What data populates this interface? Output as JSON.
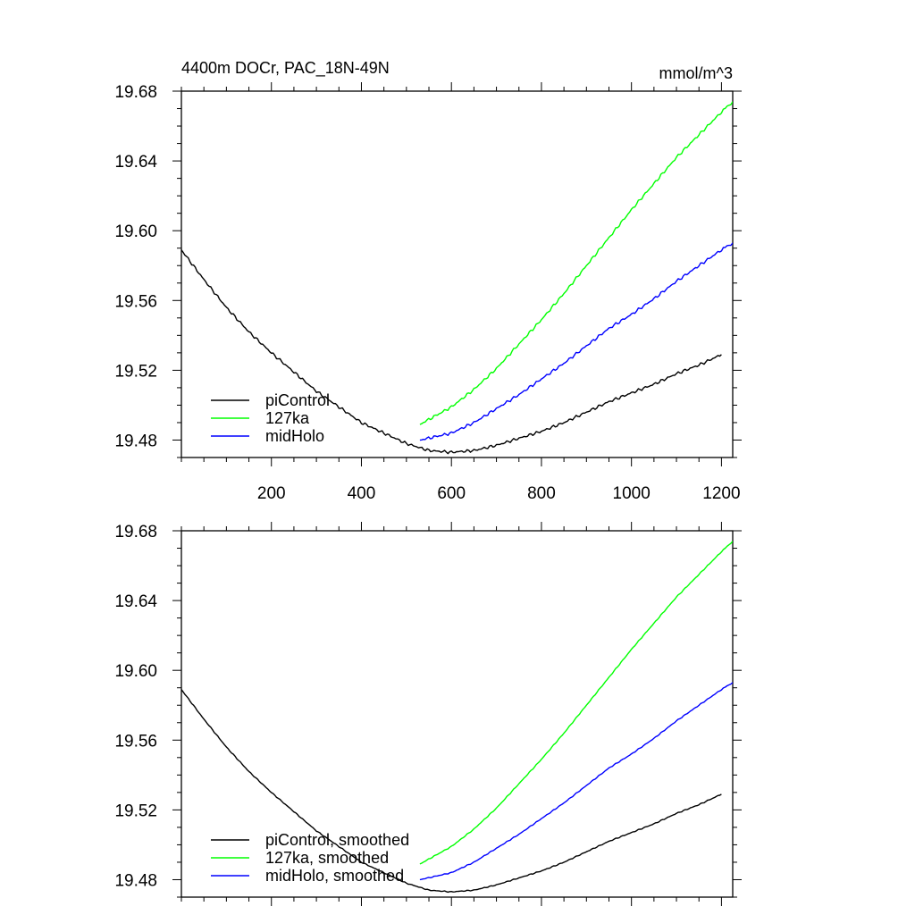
{
  "chart_data": [
    {
      "type": "line",
      "title": "4400m DOCr, PAC_18N-49N",
      "units": "mmol/m^3",
      "xlim": [
        0,
        1225
      ],
      "ylim": [
        19.47,
        19.68
      ],
      "xticks": [
        200,
        400,
        600,
        800,
        1000,
        1200
      ],
      "xtick_labels": [
        "200",
        "400",
        "600",
        "800",
        "1000",
        "1200"
      ],
      "xtick_labels_visible": true,
      "yticks": [
        19.48,
        19.52,
        19.56,
        19.6,
        19.64,
        19.68
      ],
      "ytick_labels": [
        "19.48",
        "19.52",
        "19.56",
        "19.60",
        "19.64",
        "19.68"
      ],
      "legend_position": "bottom-left",
      "series": [
        {
          "name": "piControl",
          "color": "#000000",
          "x": [
            0,
            50,
            100,
            150,
            200,
            250,
            300,
            350,
            400,
            450,
            500,
            550,
            600,
            650,
            700,
            750,
            800,
            850,
            900,
            950,
            1000,
            1050,
            1100,
            1150,
            1200
          ],
          "y": [
            19.589,
            19.572,
            19.556,
            19.542,
            19.53,
            19.519,
            19.508,
            19.499,
            19.49,
            19.484,
            19.478,
            19.474,
            19.473,
            19.474,
            19.477,
            19.481,
            19.485,
            19.49,
            19.496,
            19.502,
            19.507,
            19.512,
            19.518,
            19.523,
            19.529
          ]
        },
        {
          "name": "127ka",
          "color": "#00ff00",
          "x": [
            530,
            600,
            650,
            700,
            750,
            800,
            850,
            900,
            950,
            1000,
            1050,
            1100,
            1150,
            1200,
            1225
          ],
          "y": [
            19.489,
            19.499,
            19.509,
            19.521,
            19.535,
            19.549,
            19.564,
            19.58,
            19.596,
            19.612,
            19.627,
            19.642,
            19.655,
            19.668,
            19.674
          ]
        },
        {
          "name": "midHolo",
          "color": "#0000ff",
          "x": [
            530,
            600,
            650,
            700,
            750,
            800,
            850,
            900,
            950,
            1000,
            1050,
            1100,
            1150,
            1200,
            1225
          ],
          "y": [
            19.48,
            19.484,
            19.49,
            19.498,
            19.506,
            19.515,
            19.524,
            19.534,
            19.544,
            19.552,
            19.561,
            19.571,
            19.58,
            19.589,
            19.593
          ]
        }
      ]
    },
    {
      "type": "line",
      "title": "",
      "units": "",
      "xlim": [
        0,
        1225
      ],
      "ylim": [
        19.47,
        19.68
      ],
      "xticks": [
        200,
        400,
        600,
        800,
        1000,
        1200
      ],
      "xtick_labels": [],
      "xtick_labels_visible": false,
      "yticks": [
        19.48,
        19.52,
        19.56,
        19.6,
        19.64,
        19.68
      ],
      "ytick_labels": [
        "19.48",
        "19.52",
        "19.56",
        "19.60",
        "19.64",
        "19.68"
      ],
      "legend_position": "bottom-left",
      "series": [
        {
          "name": "piControl, smoothed",
          "color": "#000000",
          "x": [
            0,
            50,
            100,
            150,
            200,
            250,
            300,
            350,
            400,
            450,
            500,
            550,
            600,
            650,
            700,
            750,
            800,
            850,
            900,
            950,
            1000,
            1050,
            1100,
            1150,
            1200
          ],
          "y": [
            19.589,
            19.572,
            19.556,
            19.542,
            19.53,
            19.519,
            19.508,
            19.499,
            19.49,
            19.484,
            19.478,
            19.474,
            19.473,
            19.474,
            19.477,
            19.481,
            19.485,
            19.49,
            19.496,
            19.502,
            19.507,
            19.512,
            19.518,
            19.523,
            19.529
          ]
        },
        {
          "name": "127ka, smoothed",
          "color": "#00ff00",
          "x": [
            530,
            600,
            650,
            700,
            750,
            800,
            850,
            900,
            950,
            1000,
            1050,
            1100,
            1150,
            1200,
            1225
          ],
          "y": [
            19.489,
            19.499,
            19.509,
            19.521,
            19.535,
            19.549,
            19.564,
            19.58,
            19.596,
            19.612,
            19.627,
            19.642,
            19.655,
            19.668,
            19.674
          ]
        },
        {
          "name": "midHolo, smoothed",
          "color": "#0000ff",
          "x": [
            530,
            600,
            650,
            700,
            750,
            800,
            850,
            900,
            950,
            1000,
            1050,
            1100,
            1150,
            1200,
            1225
          ],
          "y": [
            19.48,
            19.484,
            19.49,
            19.498,
            19.506,
            19.515,
            19.524,
            19.534,
            19.544,
            19.552,
            19.561,
            19.571,
            19.58,
            19.589,
            19.593
          ]
        }
      ]
    }
  ]
}
